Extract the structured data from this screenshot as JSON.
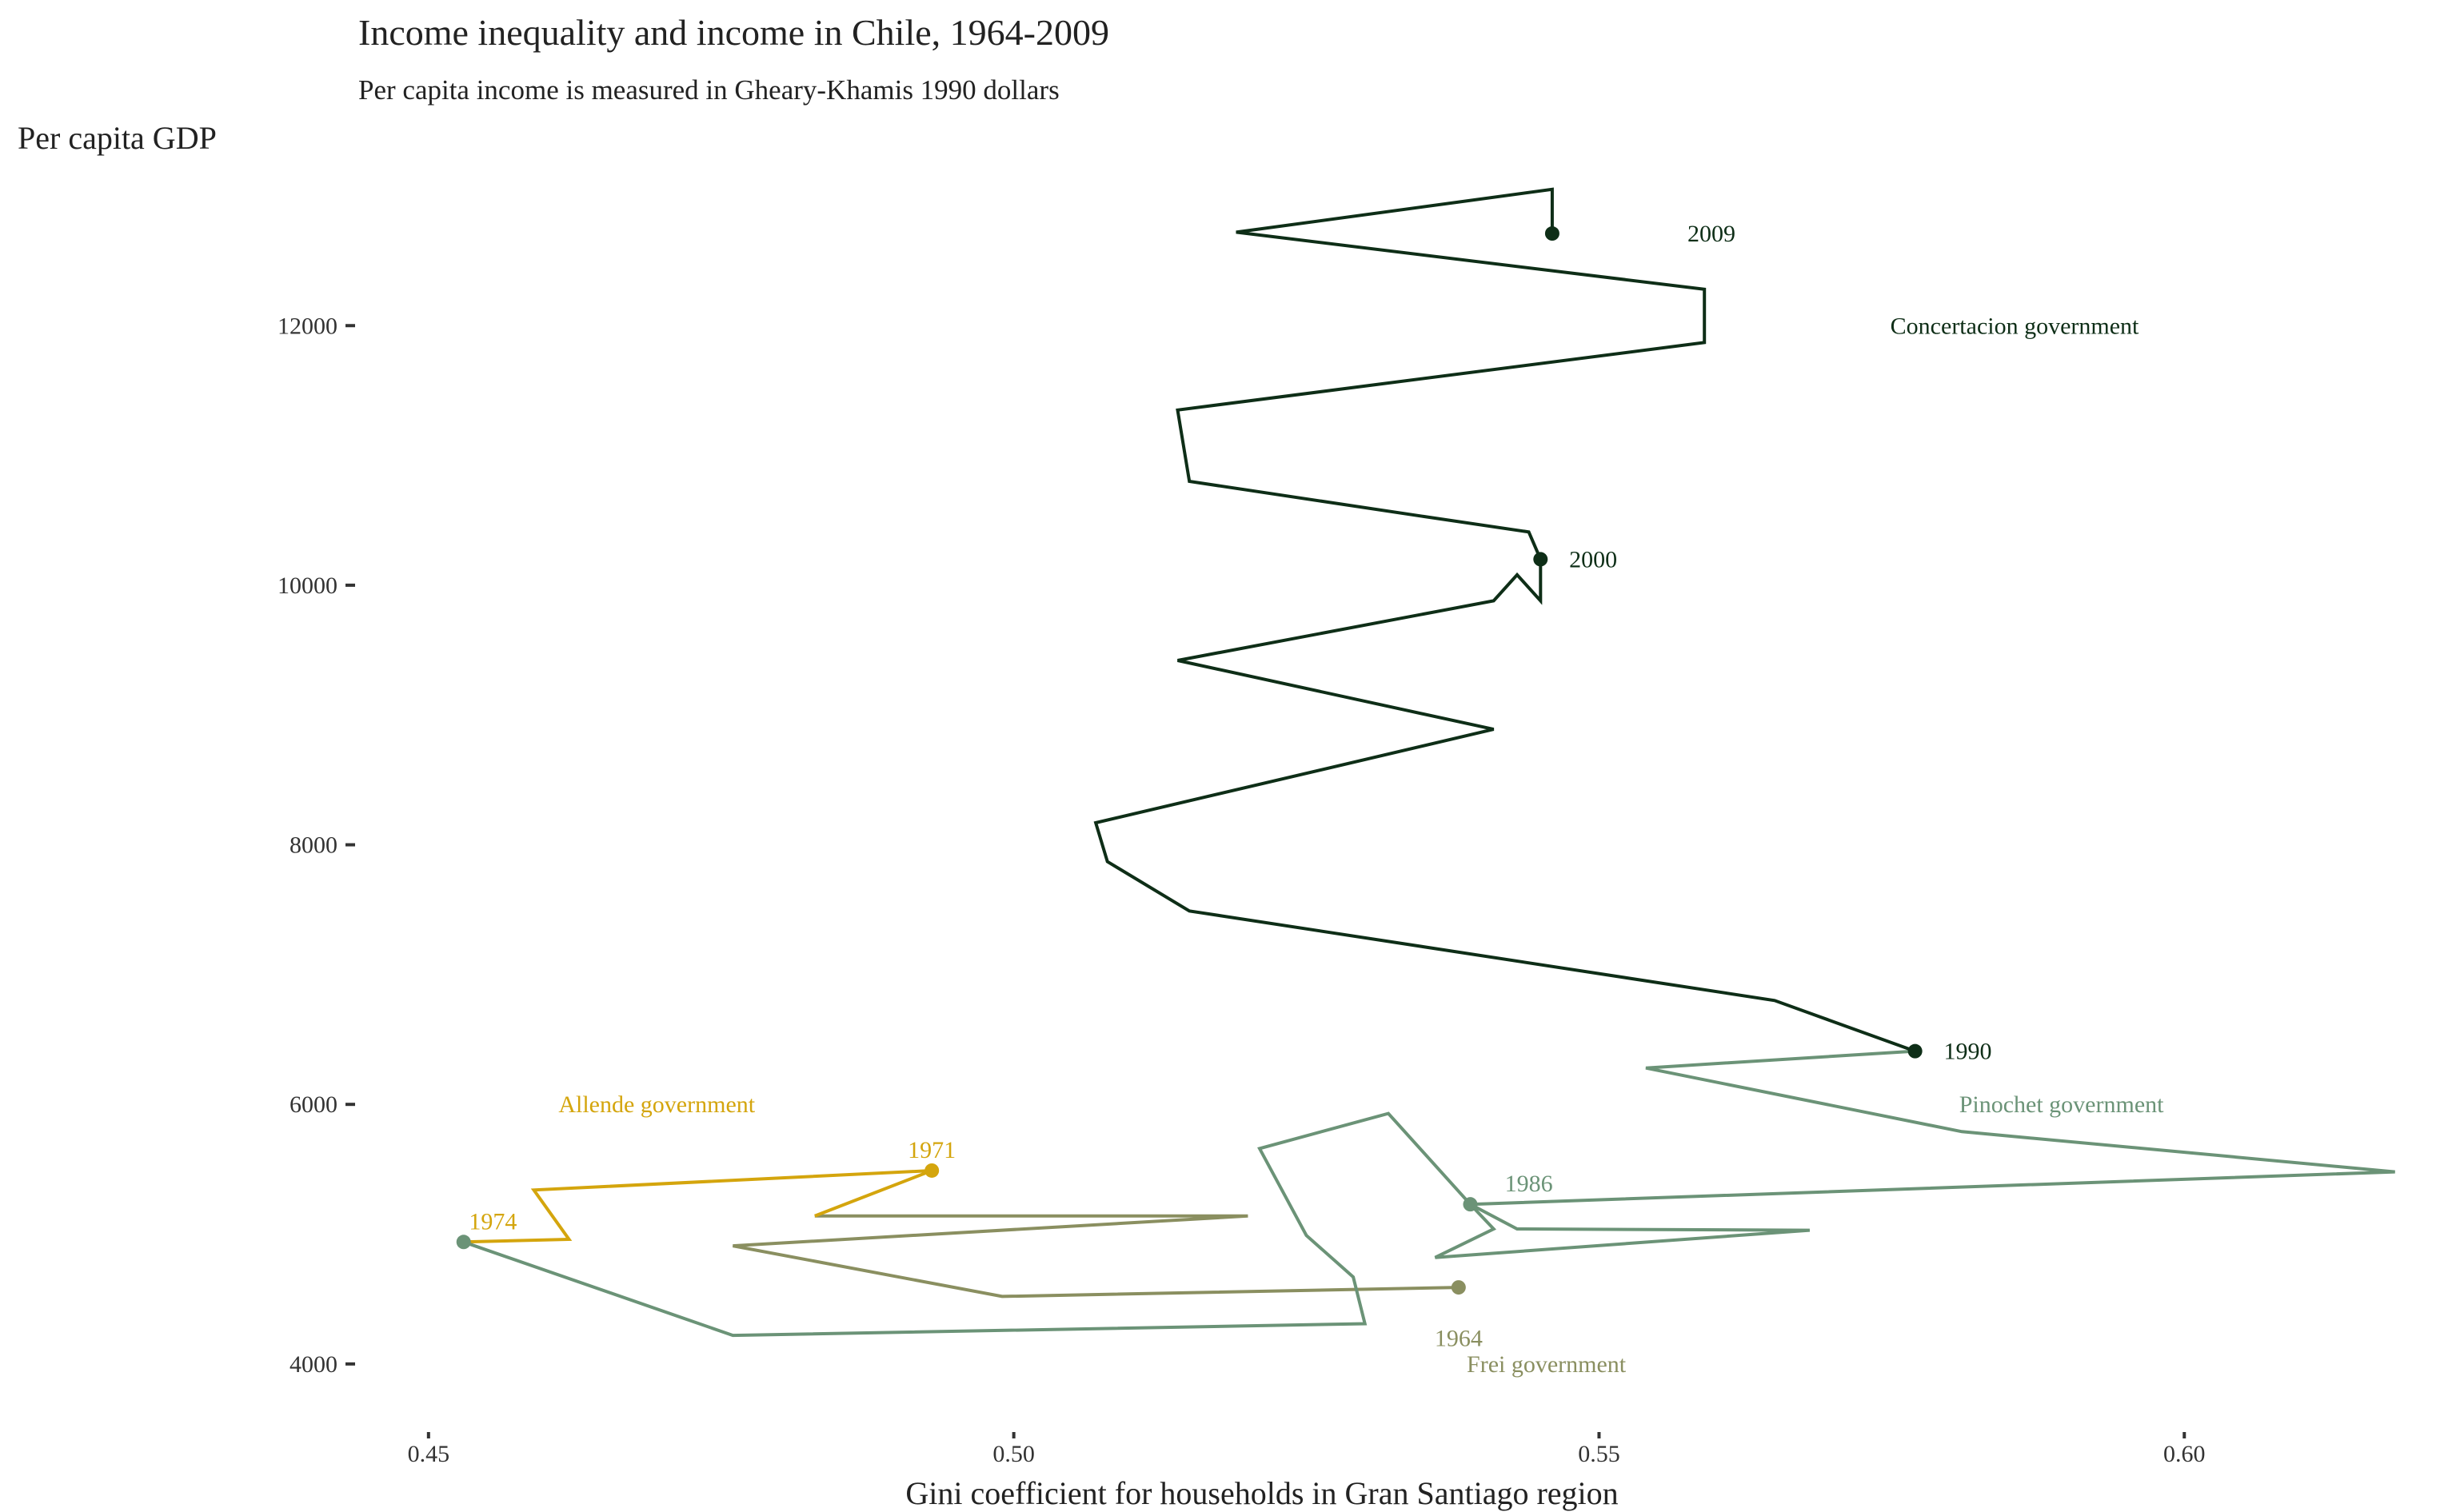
{
  "chart_data": {
    "type": "line",
    "title": "Income inequality and income in Chile, 1964-2009",
    "subtitle": "Per capita income is measured in Gheary-Khamis 1990 dollars",
    "xlabel": "Gini coefficient for households in Gran Santiago region",
    "ylabel": "Per capita GDP",
    "xlim": [
      0.444,
      0.62
    ],
    "ylim": [
      3500,
      13400
    ],
    "xticks": [
      "0.45",
      "0.50",
      "0.55",
      "0.60"
    ],
    "yticks": [
      "4000",
      "6000",
      "8000",
      "10000",
      "12000"
    ],
    "grid": false,
    "colors": {
      "frei": "#8a8f60",
      "allende": "#d4a50d",
      "pinochet": "#6b9377",
      "concertacion": "#0e2e17"
    },
    "series": [
      {
        "name": "Frei government",
        "color_key": "frei",
        "points": [
          [
            0.538,
            4590
          ],
          [
            0.499,
            4520
          ],
          [
            0.476,
            4910
          ],
          [
            0.52,
            5140
          ],
          [
            0.483,
            5140
          ]
        ]
      },
      {
        "name": "Allende government",
        "color_key": "allende",
        "points": [
          [
            0.483,
            5140
          ],
          [
            0.493,
            5490
          ],
          [
            0.459,
            5340
          ],
          [
            0.462,
            4960
          ],
          [
            0.453,
            4940
          ]
        ]
      },
      {
        "name": "Pinochet government",
        "color_key": "pinochet",
        "points": [
          [
            0.453,
            4940
          ],
          [
            0.476,
            4220
          ],
          [
            0.53,
            4310
          ],
          [
            0.529,
            4670
          ],
          [
            0.525,
            4990
          ],
          [
            0.521,
            5660
          ],
          [
            0.532,
            5930
          ],
          [
            0.539,
            5230
          ],
          [
            0.543,
            5040
          ],
          [
            0.568,
            5030
          ],
          [
            0.536,
            4820
          ],
          [
            0.541,
            5040
          ],
          [
            0.539,
            5230
          ],
          [
            0.618,
            5480
          ],
          [
            0.581,
            5790
          ],
          [
            0.554,
            6280
          ],
          [
            0.577,
            6410
          ]
        ]
      },
      {
        "name": "Concertacion government",
        "color_key": "concertacion",
        "points": [
          [
            0.577,
            6410
          ],
          [
            0.565,
            6800
          ],
          [
            0.515,
            7490
          ],
          [
            0.508,
            7870
          ],
          [
            0.507,
            8170
          ],
          [
            0.541,
            8890
          ],
          [
            0.514,
            9420
          ],
          [
            0.541,
            9880
          ],
          [
            0.543,
            10080
          ],
          [
            0.545,
            9880
          ],
          [
            0.545,
            10200
          ],
          [
            0.544,
            10410
          ],
          [
            0.535,
            10530
          ],
          [
            0.515,
            10800
          ],
          [
            0.514,
            11350
          ],
          [
            0.559,
            11870
          ],
          [
            0.559,
            12280
          ],
          [
            0.519,
            12720
          ],
          [
            0.546,
            13050
          ],
          [
            0.546,
            12710
          ]
        ]
      }
    ],
    "markers": [
      {
        "label": "1964",
        "x": 0.538,
        "y": 4590,
        "color_key": "frei"
      },
      {
        "label": "1971",
        "x": 0.493,
        "y": 5490,
        "color_key": "allende"
      },
      {
        "label": "1974",
        "x": 0.453,
        "y": 4940,
        "color_key": "pinochet"
      },
      {
        "label": "1986",
        "x": 0.539,
        "y": 5230,
        "color_key": "pinochet"
      },
      {
        "label": "1990",
        "x": 0.577,
        "y": 6410,
        "color_key": "concertacion"
      },
      {
        "label": "2000",
        "x": 0.545,
        "y": 10200,
        "color_key": "concertacion"
      },
      {
        "label": "2009",
        "x": 0.546,
        "y": 12710,
        "color_key": "concertacion"
      }
    ],
    "annotations": [
      {
        "text": "1964",
        "x": 0.538,
        "y": 4200,
        "color_key": "frei"
      },
      {
        "text": "1971",
        "x": 0.493,
        "y": 5650,
        "color_key": "allende"
      },
      {
        "text": "1974",
        "x": 0.4555,
        "y": 5100,
        "color_key": "allende"
      },
      {
        "text": "1986",
        "x": 0.544,
        "y": 5390,
        "color_key": "pinochet"
      },
      {
        "text": "1990",
        "x": 0.5815,
        "y": 6410,
        "color_key": "concertacion"
      },
      {
        "text": "2000",
        "x": 0.5495,
        "y": 10200,
        "color_key": "concertacion"
      },
      {
        "text": "2009",
        "x": 0.5596,
        "y": 12710,
        "color_key": "concertacion"
      },
      {
        "text": "Allende government",
        "x": 0.4695,
        "y": 6000,
        "color_key": "allende"
      },
      {
        "text": "Pinochet government",
        "x": 0.5895,
        "y": 6000,
        "color_key": "pinochet"
      },
      {
        "text": "Frei government",
        "x": 0.5455,
        "y": 4000,
        "color_key": "frei"
      },
      {
        "text": "Concertacion government",
        "x": 0.5855,
        "y": 12000,
        "color_key": "concertacion"
      }
    ]
  }
}
